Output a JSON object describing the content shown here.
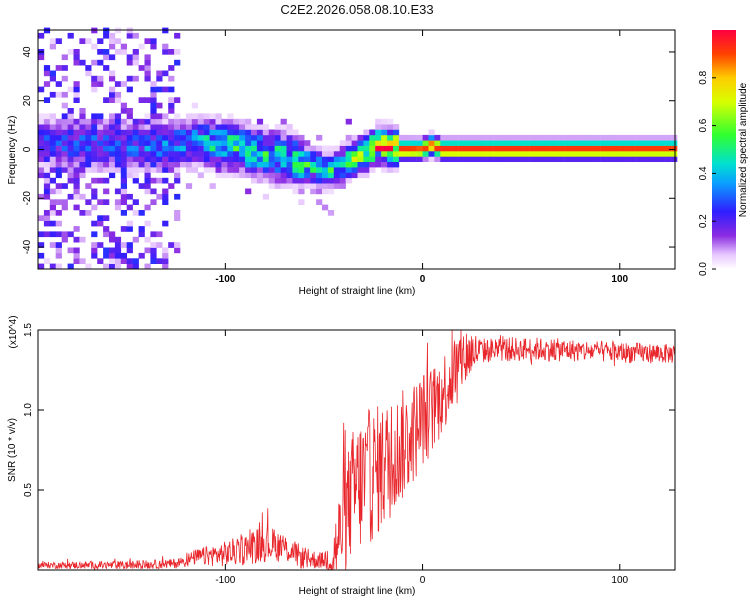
{
  "figure_title": "C2E2.2026.058.08.10.E33",
  "colors": {
    "line": "#e8262b",
    "frame": "#000000",
    "background": "#ffffff"
  },
  "chart_data": [
    {
      "type": "heatmap",
      "title": "C2E2.2026.058.08.10.E33",
      "xlabel": "Height of straight line (km)",
      "ylabel": "Frequency (Hz)",
      "xlim": [
        -195,
        128
      ],
      "ylim": [
        -49,
        49
      ],
      "xticks": [
        -100,
        0,
        100
      ],
      "xtick_labels": [
        "-100",
        "0",
        "100"
      ],
      "yticks": [
        40,
        20,
        0,
        -20,
        -40
      ],
      "ytick_labels": [
        "40",
        "20",
        "0",
        "-20",
        "-40"
      ],
      "colorbar": {
        "label": "Normalized spectral amplitude",
        "range": [
          0,
          1
        ],
        "ticks": [
          0.0,
          0.2,
          0.4,
          0.6,
          0.8
        ],
        "tick_labels": [
          "0.0",
          "0.2",
          "0.4",
          "0.6",
          "0.8"
        ],
        "colormap": "rainbow (white-violet-blue-cyan-green-yellow-red)"
      },
      "ridge_frequency": {
        "x": [
          -195,
          -160,
          -130,
          -110,
          -95,
          -80,
          -65,
          -55,
          -48,
          -42,
          -35,
          -28,
          -22,
          -17,
          -12,
          -6,
          0,
          4,
          10,
          20,
          128
        ],
        "y": [
          3,
          2,
          2,
          3,
          1,
          -2,
          -4,
          -7,
          -9,
          -7,
          -4,
          -1,
          2,
          1,
          0,
          0,
          0,
          2,
          0,
          0,
          0
        ]
      },
      "ridge_amplitude": {
        "x": [
          -195,
          -125,
          -100,
          -60,
          -40,
          -25,
          -18,
          -10,
          0,
          10,
          20,
          128
        ],
        "y": [
          0.25,
          0.3,
          0.45,
          0.45,
          0.45,
          0.7,
          0.85,
          0.95,
          0.9,
          0.95,
          0.95,
          0.93
        ]
      }
    },
    {
      "type": "line",
      "xlabel": "Height of straight line (km)",
      "ylabel": "SNR (10 * v/v)",
      "y_scale_label": "(x10^4)",
      "xlim": [
        -195,
        128
      ],
      "ylim": [
        0,
        1.5
      ],
      "xticks": [
        -100,
        0,
        100
      ],
      "xtick_labels": [
        "-100",
        "0",
        "100"
      ],
      "yticks": [
        0.5,
        1.0,
        1.5
      ],
      "ytick_labels": [
        "0.5",
        "1.0",
        "1.5"
      ],
      "series": [
        {
          "name": "SNR",
          "envelope_x": [
            -195,
            -150,
            -125,
            -115,
            -100,
            -90,
            -80,
            -70,
            -60,
            -50,
            -45,
            -40,
            -35,
            -30,
            -25,
            -20,
            -15,
            -10,
            -5,
            0,
            5,
            10,
            15,
            20,
            25,
            30,
            40,
            60,
            80,
            100,
            128
          ],
          "envelope_y": [
            0.03,
            0.03,
            0.04,
            0.08,
            0.1,
            0.13,
            0.17,
            0.14,
            0.07,
            0.06,
            0.1,
            0.3,
            0.5,
            0.55,
            0.6,
            0.65,
            0.7,
            0.78,
            0.85,
            0.95,
            1.0,
            1.1,
            1.22,
            1.32,
            1.36,
            1.37,
            1.38,
            1.38,
            1.37,
            1.36,
            1.35
          ],
          "noise_amplitude_x": [
            -195,
            -125,
            -110,
            -80,
            -70,
            -50,
            -40,
            -30,
            -20,
            0,
            20,
            30,
            128
          ],
          "noise_amplitude_y": [
            0.02,
            0.03,
            0.06,
            0.12,
            0.09,
            0.05,
            0.35,
            0.45,
            0.4,
            0.3,
            0.22,
            0.08,
            0.06
          ]
        }
      ]
    }
  ]
}
